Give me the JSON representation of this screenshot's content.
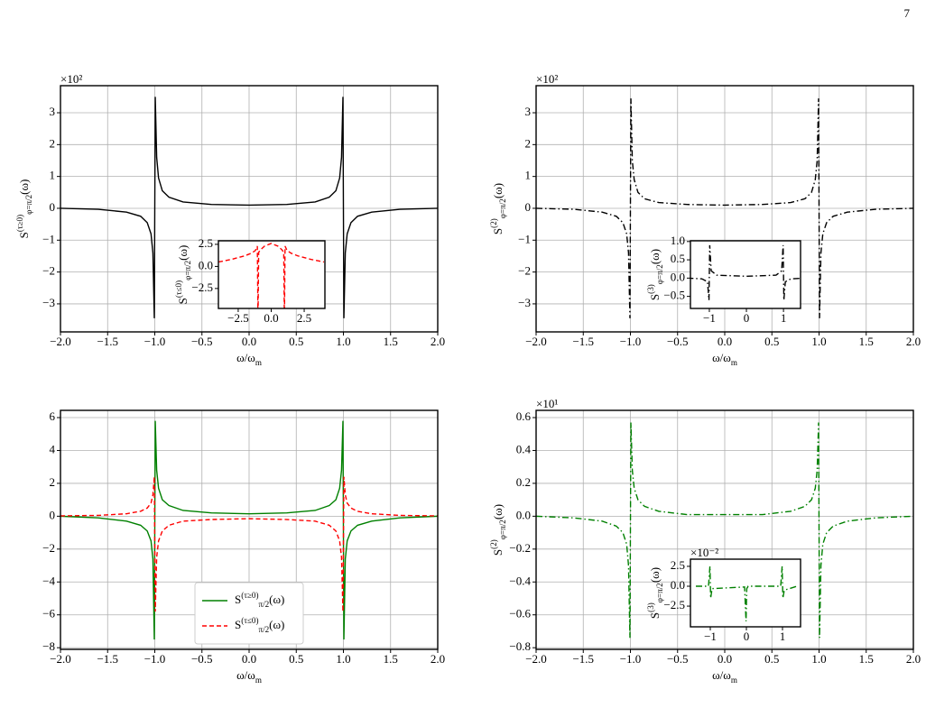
{
  "page_number": "7",
  "chart_data": [
    {
      "type": "line",
      "multiplier": "×10²",
      "xlabel": "ω/ωm",
      "ylabel": "S(τ≥0)φ=π/2(ω)",
      "grid": true,
      "xlim": [
        -2,
        2
      ],
      "ylim": [
        -3.88,
        3.85
      ],
      "xticks": [
        {
          "value": -2,
          "label": "−2.0"
        },
        {
          "value": -1.5,
          "label": "−1.5"
        },
        {
          "value": -1,
          "label": "−1.0"
        },
        {
          "value": -0.5,
          "label": "−0.5"
        },
        {
          "value": 0,
          "label": "0.0"
        },
        0.5,
        {
          "value": 1,
          "label": "1.0"
        },
        1.5,
        {
          "value": 2,
          "label": "2.0"
        }
      ],
      "yticks": [
        {
          "value": -3,
          "label": "−3"
        },
        {
          "value": -2,
          "label": "−2"
        },
        {
          "value": -1,
          "label": "−1"
        },
        0,
        1,
        2,
        3
      ],
      "x": [
        -2,
        -1.6,
        -1.3,
        -1.15,
        -1.08,
        -1.04,
        -1.02,
        -1.005,
        -0.995,
        -0.98,
        -0.96,
        -0.92,
        -0.85,
        -0.7,
        -0.4,
        0,
        0.4,
        0.7,
        0.85,
        0.92,
        0.96,
        0.98,
        0.995,
        1.005,
        1.02,
        1.04,
        1.08,
        1.15,
        1.3,
        1.6,
        2
      ],
      "series": [
        {
          "color": "#000000",
          "linestyle": "solid",
          "values": [
            0,
            -0.03,
            -0.12,
            -0.25,
            -0.45,
            -0.8,
            -1.4,
            -3.45,
            3.5,
            1.6,
            0.95,
            0.55,
            0.35,
            0.2,
            0.12,
            0.1,
            0.12,
            0.2,
            0.35,
            0.55,
            0.95,
            1.6,
            3.5,
            -3.45,
            -1.4,
            -0.8,
            -0.45,
            -0.25,
            -0.12,
            -0.03,
            0
          ]
        }
      ],
      "inset": {
        "type": "line",
        "ylabel": "S(τ≤0)φ=π/2(ω)",
        "grid": false,
        "xlim": [
          -4,
          4.07
        ],
        "ylim": [
          -4.76,
          2.9
        ],
        "xticks": [
          {
            "value": -2.5,
            "label": "−2.5"
          },
          {
            "value": 0,
            "label": "0.0"
          },
          2.5
        ],
        "yticks": [
          {
            "value": -2.5,
            "label": "−2.5"
          },
          {
            "value": 0,
            "label": "0.0"
          },
          2.5
        ],
        "x": [
          -4,
          -3,
          -2,
          -1.5,
          -1.2,
          -1.05,
          -1.01,
          -0.99,
          -0.95,
          -0.8,
          -0.5,
          0,
          0.5,
          0.8,
          0.95,
          0.99,
          1.01,
          1.05,
          1.2,
          1.5,
          2,
          3,
          4
        ],
        "series": [
          {
            "color": "#ff0000",
            "linestyle": "dashed",
            "values": [
              0.5,
              0.8,
              1.2,
              1.5,
              1.8,
              2.3,
              -4.7,
              -4.7,
              1.6,
              1.9,
              2.3,
              2.6,
              2.3,
              1.9,
              1.6,
              -4.7,
              -4.7,
              2.3,
              1.8,
              1.5,
              1.2,
              0.8,
              0.5
            ]
          }
        ]
      }
    },
    {
      "type": "line",
      "multiplier": "×10²",
      "xlabel": "ω/ωm",
      "ylabel": "S(2)φ=π/2(ω)",
      "grid": true,
      "xlim": [
        -2,
        2
      ],
      "ylim": [
        -3.88,
        3.85
      ],
      "xticks": [
        {
          "value": -2,
          "label": "−2.0"
        },
        {
          "value": -1.5,
          "label": "−1.5"
        },
        {
          "value": -1,
          "label": "−1.0"
        },
        {
          "value": -0.5,
          "label": "−0.5"
        },
        {
          "value": 0,
          "label": "0.0"
        },
        0.5,
        {
          "value": 1,
          "label": "1.0"
        },
        1.5,
        {
          "value": 2,
          "label": "2.0"
        }
      ],
      "yticks": [
        {
          "value": -3,
          "label": "−3"
        },
        {
          "value": -2,
          "label": "−2"
        },
        {
          "value": -1,
          "label": "−1"
        },
        0,
        1,
        2,
        3
      ],
      "x": [
        -2,
        -1.6,
        -1.3,
        -1.15,
        -1.08,
        -1.04,
        -1.02,
        -1.005,
        -0.995,
        -0.98,
        -0.96,
        -0.92,
        -0.85,
        -0.7,
        -0.4,
        0,
        0.4,
        0.7,
        0.85,
        0.92,
        0.96,
        0.98,
        0.995,
        1.005,
        1.02,
        1.04,
        1.08,
        1.15,
        1.3,
        1.6,
        2
      ],
      "series": [
        {
          "color": "#000000",
          "linestyle": "dashdot",
          "values": [
            0,
            -0.03,
            -0.12,
            -0.25,
            -0.45,
            -0.8,
            -1.4,
            -3.45,
            3.45,
            1.5,
            0.9,
            0.5,
            0.3,
            0.18,
            0.12,
            0.1,
            0.12,
            0.18,
            0.3,
            0.5,
            0.9,
            1.5,
            3.45,
            -3.45,
            -1.4,
            -0.8,
            -0.45,
            -0.25,
            -0.12,
            -0.03,
            0
          ]
        }
      ],
      "inset": {
        "type": "line",
        "ylabel": "S(3)φ=π/2(ω)",
        "grid": false,
        "xlim": [
          -1.51,
          1.46
        ],
        "ylim": [
          -0.83,
          1.02
        ],
        "xticks": [
          {
            "value": -1,
            "label": "−1"
          },
          0,
          1
        ],
        "yticks": [
          {
            "value": -0.5,
            "label": "−0.5"
          },
          {
            "value": 0,
            "label": "0.0"
          },
          0.5,
          {
            "value": 1,
            "label": "1.0"
          }
        ],
        "x": [
          -1.6,
          -1.2,
          -1.05,
          -1.01,
          -0.99,
          -0.95,
          -0.8,
          0,
          0.8,
          0.95,
          0.99,
          1.01,
          1.05,
          1.2,
          1.6
        ],
        "series": [
          {
            "color": "#000000",
            "linestyle": "dashdot",
            "values": [
              0,
              -0.02,
              -0.1,
              -0.6,
              0.9,
              0.2,
              0.08,
              0.05,
              0.08,
              0.2,
              0.9,
              -0.6,
              -0.1,
              -0.02,
              0
            ]
          }
        ]
      }
    },
    {
      "type": "line",
      "xlabel": "ω/ωm",
      "grid": true,
      "legend": "lower center",
      "xlim": [
        -2,
        2
      ],
      "ylim": [
        -8.1,
        6.44
      ],
      "xticks": [
        {
          "value": -2,
          "label": "−2.0"
        },
        {
          "value": -1.5,
          "label": "−1.5"
        },
        {
          "value": -1,
          "label": "−1.0"
        },
        {
          "value": -0.5,
          "label": "−0.5"
        },
        {
          "value": 0,
          "label": "0.0"
        },
        0.5,
        {
          "value": 1,
          "label": "1.0"
        },
        1.5,
        {
          "value": 2,
          "label": "2.0"
        }
      ],
      "yticks": [
        {
          "value": -8,
          "label": "−8"
        },
        {
          "value": -6,
          "label": "−6"
        },
        {
          "value": -4,
          "label": "−4"
        },
        {
          "value": -2,
          "label": "−2"
        },
        0,
        2,
        4,
        6
      ],
      "x": [
        -2,
        -1.6,
        -1.3,
        -1.15,
        -1.08,
        -1.04,
        -1.02,
        -1.005,
        -0.995,
        -0.98,
        -0.96,
        -0.92,
        -0.85,
        -0.7,
        -0.4,
        0,
        0.4,
        0.7,
        0.85,
        0.92,
        0.96,
        0.98,
        0.995,
        1.005,
        1.02,
        1.04,
        1.08,
        1.15,
        1.3,
        1.6,
        2
      ],
      "series": [
        {
          "name": "S(τ≥0)π/2(ω)",
          "color": "#008000",
          "linestyle": "solid",
          "values": [
            0,
            -0.1,
            -0.3,
            -0.55,
            -0.9,
            -1.5,
            -2.6,
            -7.5,
            5.8,
            2.8,
            1.7,
            1.0,
            0.65,
            0.35,
            0.2,
            0.15,
            0.2,
            0.35,
            0.65,
            1.0,
            1.7,
            2.8,
            5.8,
            -7.5,
            -2.6,
            -1.5,
            -0.9,
            -0.55,
            -0.3,
            -0.1,
            0
          ]
        },
        {
          "name": "S(τ≤0)π/2(ω)",
          "color": "#ff0000",
          "linestyle": "dashed",
          "values": [
            0.02,
            0.05,
            0.15,
            0.3,
            0.5,
            0.8,
            1.3,
            2.4,
            -5.8,
            -2.5,
            -1.5,
            -0.9,
            -0.55,
            -0.3,
            -0.2,
            -0.15,
            -0.2,
            -0.3,
            -0.55,
            -0.9,
            -1.5,
            -2.5,
            -5.8,
            2.4,
            1.3,
            0.8,
            0.5,
            0.3,
            0.15,
            0.05,
            0.02
          ]
        }
      ]
    },
    {
      "type": "line",
      "multiplier": "×10¹",
      "xlabel": "ω/ωm",
      "ylabel": "S(2)φ=π/2(ω)",
      "grid": true,
      "xlim": [
        -2,
        2
      ],
      "ylim": [
        -0.81,
        0.644
      ],
      "xticks": [
        {
          "value": -2,
          "label": "−2.0"
        },
        {
          "value": -1.5,
          "label": "−1.5"
        },
        {
          "value": -1,
          "label": "−1.0"
        },
        {
          "value": -0.5,
          "label": "−0.5"
        },
        {
          "value": 0,
          "label": "0.0"
        },
        0.5,
        {
          "value": 1,
          "label": "1.0"
        },
        1.5,
        {
          "value": 2,
          "label": "2.0"
        }
      ],
      "yticks": [
        {
          "value": -0.8,
          "label": "−0.8"
        },
        {
          "value": -0.6,
          "label": "−0.6"
        },
        {
          "value": -0.4,
          "label": "−0.4"
        },
        {
          "value": -0.2,
          "label": "−0.2"
        },
        {
          "value": 0,
          "label": "0.0"
        },
        0.2,
        0.4,
        0.6
      ],
      "x": [
        -2,
        -1.6,
        -1.3,
        -1.15,
        -1.08,
        -1.04,
        -1.02,
        -1.005,
        -0.995,
        -0.98,
        -0.96,
        -0.92,
        -0.85,
        -0.7,
        -0.4,
        0,
        0.4,
        0.7,
        0.85,
        0.92,
        0.96,
        0.98,
        0.995,
        1.005,
        1.02,
        1.04,
        1.08,
        1.15,
        1.3,
        1.6,
        2
      ],
      "series": [
        {
          "color": "#008000",
          "linestyle": "dashdot",
          "values": [
            0,
            -0.01,
            -0.03,
            -0.06,
            -0.1,
            -0.17,
            -0.3,
            -0.74,
            0.57,
            0.28,
            0.17,
            0.1,
            0.06,
            0.03,
            0.01,
            0.01,
            0.01,
            0.03,
            0.06,
            0.1,
            0.17,
            0.28,
            0.57,
            -0.74,
            -0.3,
            -0.17,
            -0.1,
            -0.06,
            -0.03,
            -0.01,
            0
          ]
        }
      ],
      "inset": {
        "type": "line",
        "multiplier": "×10⁻²",
        "ylabel": "S(3)φ=π/2(ω)",
        "grid": false,
        "xlim": [
          -1.55,
          1.5
        ],
        "ylim": [
          -5.1,
          3.4
        ],
        "xticks": [
          {
            "value": -1,
            "label": "−1"
          },
          0,
          1
        ],
        "yticks": [
          {
            "value": -2.5,
            "label": "−2.5"
          },
          {
            "value": 0,
            "label": "0.0"
          },
          2.5
        ],
        "x": [
          -1.4,
          -1.05,
          -1.01,
          -0.99,
          -0.95,
          -0.05,
          -0.01,
          0.01,
          0.05,
          0.95,
          0.99,
          1.01,
          1.05,
          1.4
        ],
        "series": [
          {
            "color": "#008000",
            "linestyle": "dashdot",
            "values": [
              0,
              0,
              2.5,
              -1.5,
              -0.3,
              -0.1,
              -4.4,
              -0.3,
              0,
              0,
              2.5,
              -1.5,
              -0.5,
              0
            ]
          }
        ]
      }
    }
  ]
}
